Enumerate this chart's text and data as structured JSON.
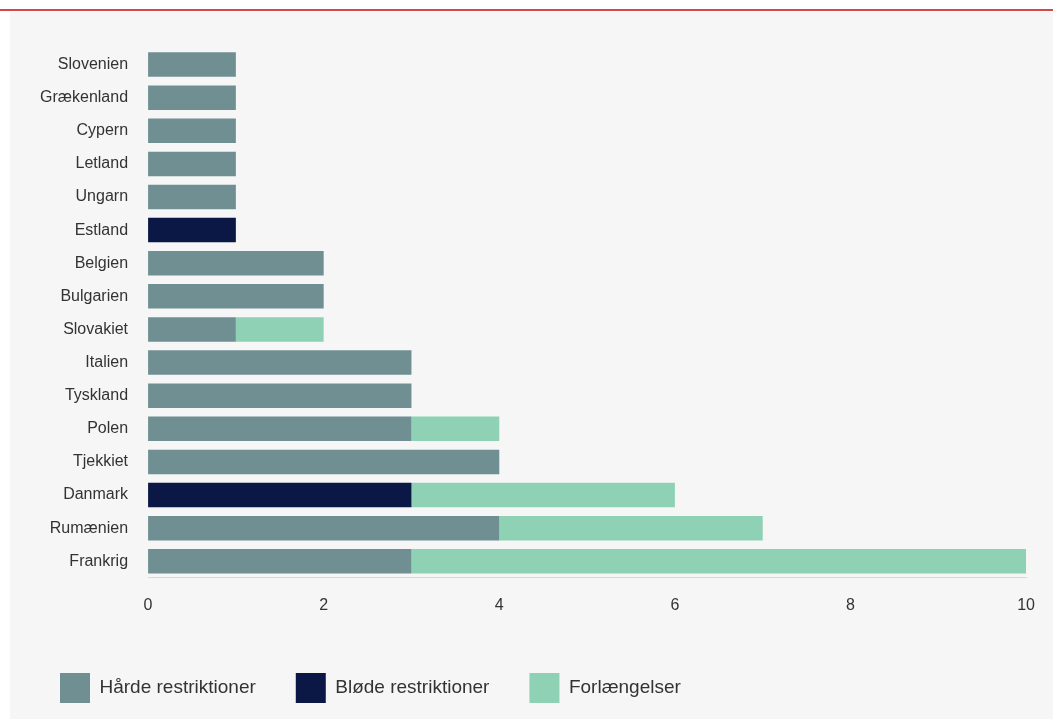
{
  "chart_data": {
    "type": "bar",
    "orientation": "horizontal",
    "stacked": true,
    "categories": [
      "Slovenien",
      "Grækenland",
      "Cypern",
      "Letland",
      "Ungarn",
      "Estland",
      "Belgien",
      "Bulgarien",
      "Slovakiet",
      "Italien",
      "Tyskland",
      "Polen",
      "Tjekkiet",
      "Danmark",
      "Rumænien",
      "Frankrig"
    ],
    "series": [
      {
        "name": "Hårde restriktioner",
        "color": "#6f8f93",
        "values": [
          1,
          1,
          1,
          1,
          1,
          null,
          2,
          2,
          1,
          3,
          3,
          3,
          4,
          null,
          4,
          3
        ]
      },
      {
        "name": "Bløde restriktioner",
        "color": "#0b1744",
        "values": [
          null,
          null,
          null,
          null,
          null,
          1,
          null,
          null,
          null,
          null,
          null,
          null,
          null,
          3,
          null,
          null
        ]
      },
      {
        "name": "Forlængelser",
        "color": "#8fd1b4",
        "values": [
          null,
          null,
          null,
          null,
          null,
          null,
          null,
          null,
          1,
          null,
          null,
          1,
          null,
          3,
          3,
          7
        ]
      }
    ],
    "xlim": [
      0,
      10
    ],
    "xticks": [
      0,
      2,
      4,
      6,
      8,
      10
    ],
    "grid": false,
    "legend": "bottom left"
  }
}
